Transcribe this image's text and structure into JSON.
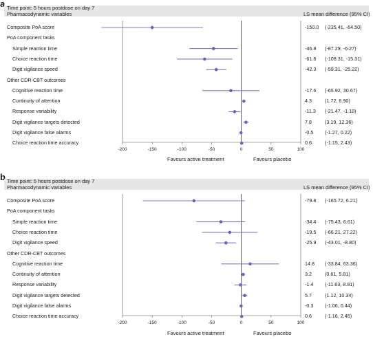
{
  "colors": {
    "marker": "#6b64a8",
    "line": "#7f79b8",
    "axis": "#555555",
    "header": "#e6e6e6"
  },
  "panels": [
    {
      "letter": "a",
      "time_point": "Time point: 5 hours postdose on day 7",
      "variables_heading": "Pharmacodynamic variables",
      "ls_heading": "LS mean difference (95% CI)",
      "favours_left": "Favours active treatment",
      "favours_right": "Favours placebo",
      "rows": [
        {
          "label": "Composite PoA score",
          "indent": 0,
          "value": "-150.0",
          "ci": "(-235.41, -64.50)"
        },
        {
          "label": "PoA component tasks",
          "indent": 0,
          "heading": true
        },
        {
          "label": "Simple reaction time",
          "indent": 1,
          "value": "-46.8",
          "ci": "(-87.29, -6.27)"
        },
        {
          "label": "Choice reaction time",
          "indent": 1,
          "value": "-61.8",
          "ci": "(-108.31, -15.31)"
        },
        {
          "label": "Digit vigilance speed",
          "indent": 1,
          "value": "-42.3",
          "ci": "(-59.31, -25.22)"
        },
        {
          "label": "Other CDR-CBT outcomes",
          "indent": 0,
          "heading": true
        },
        {
          "label": "Cognitive reaction time",
          "indent": 1,
          "value": "-17.6",
          "ci": "(-65.92, 30.67)"
        },
        {
          "label": "Continuity of attention",
          "indent": 1,
          "value": "4.3",
          "ci": "(1.72, 6.90)"
        },
        {
          "label": "Response variability",
          "indent": 1,
          "value": "-11.3",
          "ci": "(-21.47, -1.18)"
        },
        {
          "label": "Digit vigilance targets detected",
          "indent": 1,
          "value": "7.8",
          "ci": "(3.19, 12.36)"
        },
        {
          "label": "Digit vigilance false alarms",
          "indent": 1,
          "value": "-0.5",
          "ci": "(-1.27, 0.22)"
        },
        {
          "label": "Choice reaction time accuracy",
          "indent": 1,
          "value": "0.6",
          "ci": "(-1.15, 2.43)"
        }
      ]
    },
    {
      "letter": "b",
      "time_point": "Time point: 5 hours postdose on day 7",
      "variables_heading": "Pharmacodynamic variables",
      "ls_heading": "LS mean difference (95% CI)",
      "favours_left": "Favours active treatment",
      "favours_right": "Favours placebo",
      "rows": [
        {
          "label": "Composite PoA score",
          "indent": 0,
          "value": "-79.8",
          "ci": "(-165.72, 6.21)"
        },
        {
          "label": "PoA component tasks",
          "indent": 0,
          "heading": true
        },
        {
          "label": "Simple reaction time",
          "indent": 1,
          "value": "-34.4",
          "ci": "(-75.43, 6.61)"
        },
        {
          "label": "Choice reaction time",
          "indent": 1,
          "value": "-19.5",
          "ci": "(-66.21, 27.22)"
        },
        {
          "label": "Digit vigilance speed",
          "indent": 1,
          "value": "-25.9",
          "ci": "(-43.01, -8.80)"
        },
        {
          "label": "Other CDR-CBT outcomes",
          "indent": 0,
          "heading": true
        },
        {
          "label": "Cognitive reaction time",
          "indent": 1,
          "value": "14.8",
          "ci": "(-33.84, 63.36)"
        },
        {
          "label": "Continuity of attention",
          "indent": 1,
          "value": "3.2",
          "ci": "(0.61, 5.81)"
        },
        {
          "label": "Response variability",
          "indent": 1,
          "value": "-1.4",
          "ci": "(-11.63, 8.81)"
        },
        {
          "label": "Digit vigilance targets detected",
          "indent": 1,
          "value": "5.7",
          "ci": "(1.12, 10.34)"
        },
        {
          "label": "Digit vigilance false alarms",
          "indent": 1,
          "value": "-0.3",
          "ci": "(-1.06, 0.44)"
        },
        {
          "label": "Choice reaction time accuracy",
          "indent": 1,
          "value": "0.6",
          "ci": "(-1.16, 2.45)"
        }
      ]
    }
  ],
  "chart_data": [
    {
      "type": "forest",
      "xlim": [
        -200,
        100
      ],
      "xticks": [
        "-200",
        "-150",
        "-100",
        "-50",
        "0",
        "50",
        "100"
      ],
      "reference_line": 0,
      "series": [
        {
          "label": "Composite PoA score",
          "estimate": -150.0,
          "lower": -235.41,
          "upper": -64.5
        },
        {
          "label": "Simple reaction time",
          "estimate": -46.8,
          "lower": -87.29,
          "upper": -6.27
        },
        {
          "label": "Choice reaction time",
          "estimate": -61.8,
          "lower": -108.31,
          "upper": -15.31
        },
        {
          "label": "Digit vigilance speed",
          "estimate": -42.3,
          "lower": -59.31,
          "upper": -25.22
        },
        {
          "label": "Cognitive reaction time",
          "estimate": -17.6,
          "lower": -65.92,
          "upper": 30.67
        },
        {
          "label": "Continuity of attention",
          "estimate": 4.3,
          "lower": 1.72,
          "upper": 6.9
        },
        {
          "label": "Response variability",
          "estimate": -11.3,
          "lower": -21.47,
          "upper": -1.18
        },
        {
          "label": "Digit vigilance targets detected",
          "estimate": 7.8,
          "lower": 3.19,
          "upper": 12.36
        },
        {
          "label": "Digit vigilance false alarms",
          "estimate": -0.5,
          "lower": -1.27,
          "upper": 0.22
        },
        {
          "label": "Choice reaction time accuracy",
          "estimate": 0.6,
          "lower": -1.15,
          "upper": 2.43
        }
      ]
    },
    {
      "type": "forest",
      "xlim": [
        -200,
        100
      ],
      "xticks": [
        "-200",
        "-150",
        "-100",
        "-50",
        "0",
        "50",
        "100"
      ],
      "reference_line": 0,
      "series": [
        {
          "label": "Composite PoA score",
          "estimate": -79.8,
          "lower": -165.72,
          "upper": 6.21
        },
        {
          "label": "Simple reaction time",
          "estimate": -34.4,
          "lower": -75.43,
          "upper": 6.61
        },
        {
          "label": "Choice reaction time",
          "estimate": -19.5,
          "lower": -66.21,
          "upper": 27.22
        },
        {
          "label": "Digit vigilance speed",
          "estimate": -25.9,
          "lower": -43.01,
          "upper": -8.8
        },
        {
          "label": "Cognitive reaction time",
          "estimate": 14.8,
          "lower": -33.84,
          "upper": 63.36
        },
        {
          "label": "Continuity of attention",
          "estimate": 3.2,
          "lower": 0.61,
          "upper": 5.81
        },
        {
          "label": "Response variability",
          "estimate": -1.4,
          "lower": -11.63,
          "upper": 8.81
        },
        {
          "label": "Digit vigilance targets detected",
          "estimate": 5.7,
          "lower": 1.12,
          "upper": 10.34
        },
        {
          "label": "Digit vigilance false alarms",
          "estimate": -0.3,
          "lower": -1.06,
          "upper": 0.44
        },
        {
          "label": "Choice reaction time accuracy",
          "estimate": 0.6,
          "lower": -1.16,
          "upper": 2.45
        }
      ]
    }
  ]
}
